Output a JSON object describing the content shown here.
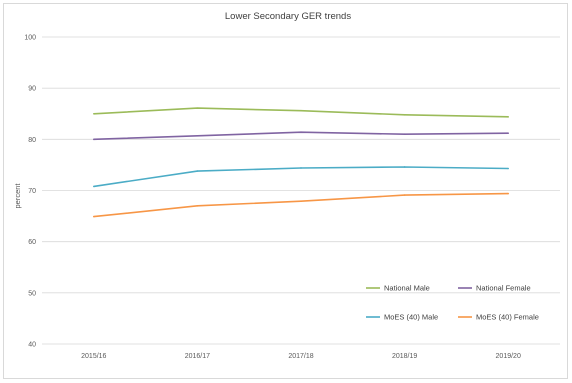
{
  "chart_data": {
    "type": "line",
    "title": "Lower Secondary GER trends",
    "xlabel": "",
    "ylabel": "percent",
    "categories": [
      "2015/16",
      "2016/17",
      "2017/18",
      "2018/19",
      "2019/20"
    ],
    "ylim": [
      40,
      100
    ],
    "yticks": [
      40,
      50,
      60,
      70,
      80,
      90,
      100
    ],
    "grid": true,
    "legend_position": "bottom-right",
    "series": [
      {
        "name": "National Male",
        "color": "#9bbb59",
        "values": [
          85.0,
          86.1,
          85.6,
          84.8,
          84.4
        ]
      },
      {
        "name": "National Female",
        "color": "#8064a2",
        "values": [
          80.0,
          80.7,
          81.4,
          81.0,
          81.2
        ]
      },
      {
        "name": "MoES (40) Male",
        "color": "#4bacc6",
        "values": [
          70.8,
          73.8,
          74.4,
          74.6,
          74.3
        ]
      },
      {
        "name": "MoES (40) Female",
        "color": "#f79646",
        "values": [
          64.9,
          67.0,
          67.9,
          69.1,
          69.4
        ]
      }
    ]
  }
}
